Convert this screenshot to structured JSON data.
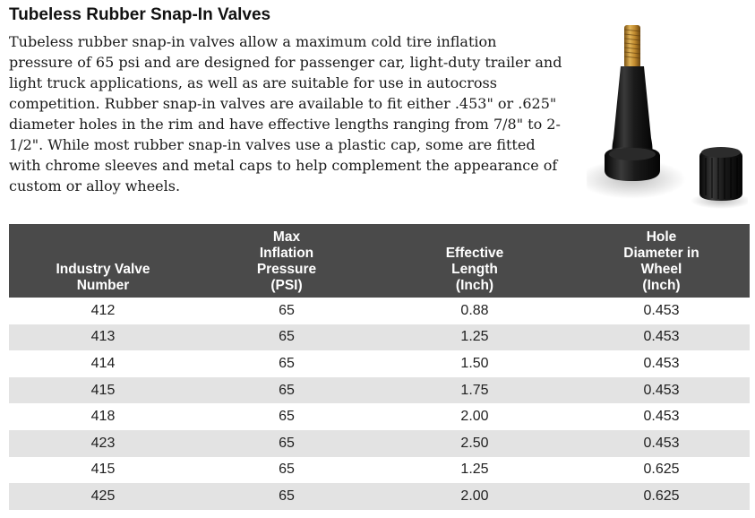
{
  "title": "Tubeless Rubber Snap-In Valves",
  "description_lines": [
    "Tubeless rubber snap-in valves allow a maximum cold tire inflation",
    "pressure of 65 psi and are designed for passenger car, light-duty trailer and",
    "light truck applications, as well as are suitable for use in autocross",
    "competition. Rubber snap-in valves are available to fit either .453\" or .625\"",
    "diameter holes in the rim and have effective lengths ranging from 7/8\" to 2-",
    "1/2\". While most rubber snap-in valves use a plastic cap, some are fitted",
    "with chrome sleeves and metal caps to help complement the appearance of",
    "custom or alloy wheels."
  ],
  "image": {
    "icon": "rubber-snap-in-valve-with-cap",
    "colors": {
      "stem": "#b8862c",
      "rubber": "#121212",
      "header": "#4a4a4a",
      "stripe": "#e3e3e3"
    }
  },
  "table": {
    "headers": [
      [
        "Industry Valve",
        "Number"
      ],
      [
        "Max",
        "Inflation",
        "Pressure",
        "(PSI)"
      ],
      [
        "Effective",
        "Length",
        "(Inch)"
      ],
      [
        "Hole",
        "Diameter in",
        "Wheel",
        "(Inch)"
      ]
    ],
    "rows": [
      [
        "412",
        "65",
        "0.88",
        "0.453"
      ],
      [
        "413",
        "65",
        "1.25",
        "0.453"
      ],
      [
        "414",
        "65",
        "1.50",
        "0.453"
      ],
      [
        "415",
        "65",
        "1.75",
        "0.453"
      ],
      [
        "418",
        "65",
        "2.00",
        "0.453"
      ],
      [
        "423",
        "65",
        "2.50",
        "0.453"
      ],
      [
        "415",
        "65",
        "1.25",
        "0.625"
      ],
      [
        "425",
        "65",
        "2.00",
        "0.625"
      ]
    ]
  }
}
